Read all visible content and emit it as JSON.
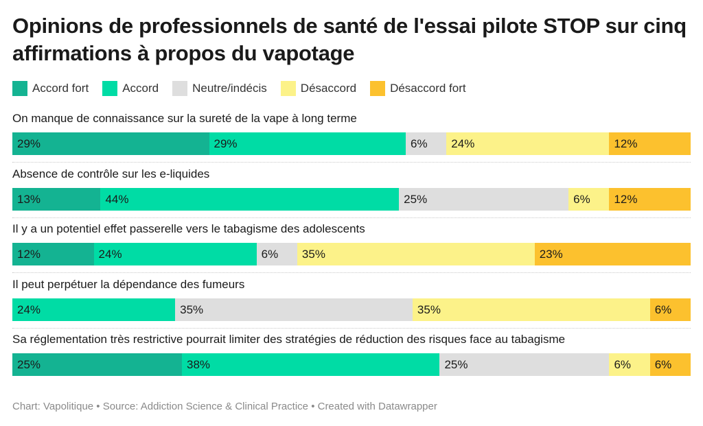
{
  "chart_data": {
    "type": "bar",
    "stacked": true,
    "orientation": "horizontal",
    "title": "Opinions de professionnels de santé de l'essai pilote STOP sur cinq affirmations à propos du vapotage",
    "legend_position": "top-left",
    "categories": [
      "On manque de connaissance sur la sureté de la vape à long terme",
      "Absence de contrôle sur les e-liquides",
      "Il y a un potentiel effet passerelle vers le tabagisme des adolescents",
      "Il peut perpétuer la dépendance des fumeurs",
      "Sa réglementation très restrictive pourrait limiter des stratégies de réduction des risques face au tabagisme"
    ],
    "series": [
      {
        "name": "Accord fort",
        "color": "#14b392",
        "values": [
          29,
          13,
          12,
          0,
          25
        ]
      },
      {
        "name": "Accord",
        "color": "#00dca5",
        "values": [
          29,
          44,
          24,
          24,
          38
        ]
      },
      {
        "name": "Neutre/indécis",
        "color": "#dedede",
        "values": [
          6,
          25,
          6,
          35,
          25
        ]
      },
      {
        "name": "Désaccord",
        "color": "#fcf289",
        "values": [
          24,
          6,
          35,
          35,
          6
        ]
      },
      {
        "name": "Désaccord fort",
        "color": "#fcc12e",
        "values": [
          12,
          12,
          23,
          6,
          6
        ]
      }
    ],
    "value_suffix": "%"
  },
  "footer": "Chart: Vapolitique • Source: Addiction Science & Clinical Practice • Created with Datawrapper"
}
